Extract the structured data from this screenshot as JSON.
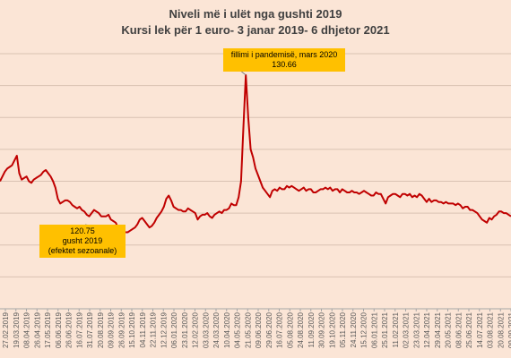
{
  "chart_data": {
    "type": "line",
    "title": "Niveli më i ulët nga gushti 2019",
    "subtitle": "Kursi lek për 1 euro- 3 janar 2019- 6 dhjetor 2021",
    "xlabel": "",
    "ylabel": "",
    "ylim": [
      116,
      132
    ],
    "grid": true,
    "legend": "none",
    "line_color": "#c00000",
    "x_tick_labels": [
      "27.02.2019",
      "19.03.2019",
      "08.04.2019",
      "26.04.2019",
      "17.05.2019",
      "06.06.2019",
      "26.06.2019",
      "16.07.2019",
      "31.07.2019",
      "20.08.2019",
      "09.09.2019",
      "26.09.2019",
      "15.10.2019",
      "04.11.2019",
      "22.11.2019",
      "12.12.2019",
      "06.01.2020",
      "23.01.2020",
      "12.02.2020",
      "03.03.2020",
      "24.03.2020",
      "10.04.2020",
      "04.05.2020",
      "21.05.2020",
      "09.06.2020",
      "29.06.2020",
      "16.07.2020",
      "05.08.2020",
      "24.08.2020",
      "11.09.2020",
      "30.09.2020",
      "19.10.2020",
      "05.11.2020",
      "24.11.2020",
      "15.12.2020",
      "06.01.2021",
      "25.01.2021",
      "11.02.2021",
      "02.03.2021",
      "23.03.2021",
      "12.04.2021",
      "29.04.2021",
      "20.05.2021",
      "08.06.2021",
      "25.06.2021",
      "14.07.2021",
      "03.08.2021",
      "20.08.2021",
      "09.09.2021"
    ],
    "series": [
      {
        "values": [
          124.0,
          124.3,
          124.6,
          124.8,
          124.9,
          125.0,
          125.3,
          125.6,
          124.5,
          124.1,
          124.2,
          124.3,
          124.0,
          123.9,
          124.1,
          124.2,
          124.3,
          124.4,
          124.6,
          124.7,
          124.5,
          124.3,
          124.0,
          123.6,
          122.9,
          122.6,
          122.7,
          122.8,
          122.8,
          122.7,
          122.5,
          122.4,
          122.3,
          122.4,
          122.2,
          122.1,
          121.9,
          121.8,
          122.0,
          122.2,
          122.1,
          122.0,
          121.8,
          121.8,
          121.8,
          121.9,
          121.6,
          121.5,
          121.4,
          121.1,
          121.0,
          120.9,
          120.8,
          120.8,
          120.9,
          121.0,
          121.1,
          121.3,
          121.6,
          121.7,
          121.5,
          121.3,
          121.1,
          121.2,
          121.4,
          121.7,
          121.9,
          122.1,
          122.4,
          122.9,
          123.1,
          122.8,
          122.4,
          122.3,
          122.2,
          122.2,
          122.1,
          122.1,
          122.3,
          122.2,
          122.1,
          122.0,
          121.6,
          121.8,
          121.9,
          121.9,
          122.0,
          121.8,
          121.7,
          121.9,
          122.0,
          122.1,
          122.0,
          122.2,
          122.2,
          122.3,
          122.6,
          122.5,
          122.5,
          123.0,
          124.0,
          127.5,
          130.66,
          128.0,
          126.0,
          125.5,
          124.8,
          124.4,
          124.0,
          123.6,
          123.4,
          123.2,
          123.0,
          123.4,
          123.5,
          123.4,
          123.6,
          123.5,
          123.5,
          123.7,
          123.6,
          123.7,
          123.6,
          123.5,
          123.4,
          123.5,
          123.6,
          123.4,
          123.5,
          123.5,
          123.3,
          123.3,
          123.4,
          123.5,
          123.5,
          123.6,
          123.5,
          123.6,
          123.4,
          123.5,
          123.5,
          123.3,
          123.5,
          123.4,
          123.3,
          123.3,
          123.4,
          123.3,
          123.3,
          123.2,
          123.3,
          123.4,
          123.3,
          123.2,
          123.1,
          123.1,
          123.3,
          123.2,
          123.2,
          122.9,
          122.6,
          123.0,
          123.1,
          123.2,
          123.2,
          123.1,
          123.0,
          123.2,
          123.2,
          123.1,
          123.2,
          123.0,
          123.1,
          123.0,
          123.2,
          123.1,
          122.9,
          122.7,
          122.9,
          122.7,
          122.8,
          122.8,
          122.7,
          122.7,
          122.6,
          122.7,
          122.6,
          122.6,
          122.6,
          122.5,
          122.6,
          122.5,
          122.3,
          122.4,
          122.4,
          122.2,
          122.2,
          122.1,
          122.0,
          121.8,
          121.6,
          121.5,
          121.4,
          121.7,
          121.6,
          121.8,
          121.9,
          122.1,
          122.1,
          122.0,
          122.0,
          121.9,
          121.8
        ]
      }
    ],
    "annotations": [
      {
        "id": "peak",
        "lines": [
          "fillimi i pandemisë, mars 2020",
          "130.66"
        ],
        "value": 130.66
      },
      {
        "id": "low",
        "lines": [
          "120.75",
          "gusht 2019",
          "(efektet sezoanale)"
        ],
        "value": 120.75
      }
    ]
  }
}
